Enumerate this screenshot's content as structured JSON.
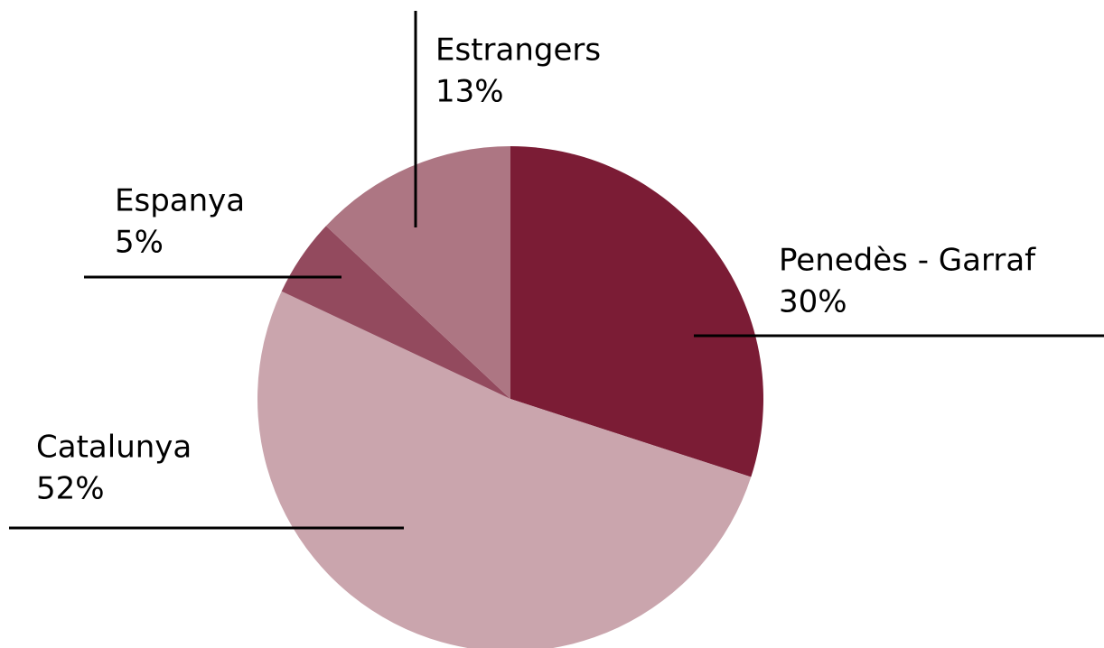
{
  "chart_data": {
    "type": "pie",
    "categories": [
      "Penedès - Garraf",
      "Catalunya",
      "Espanya",
      "Estrangers"
    ],
    "values": [
      30,
      52,
      5,
      13
    ],
    "value_labels": [
      "30%",
      "52%",
      "5%",
      "13%"
    ],
    "colors": [
      "#7b1c35",
      "#caa5ad",
      "#934a5e",
      "#ad7683"
    ]
  }
}
